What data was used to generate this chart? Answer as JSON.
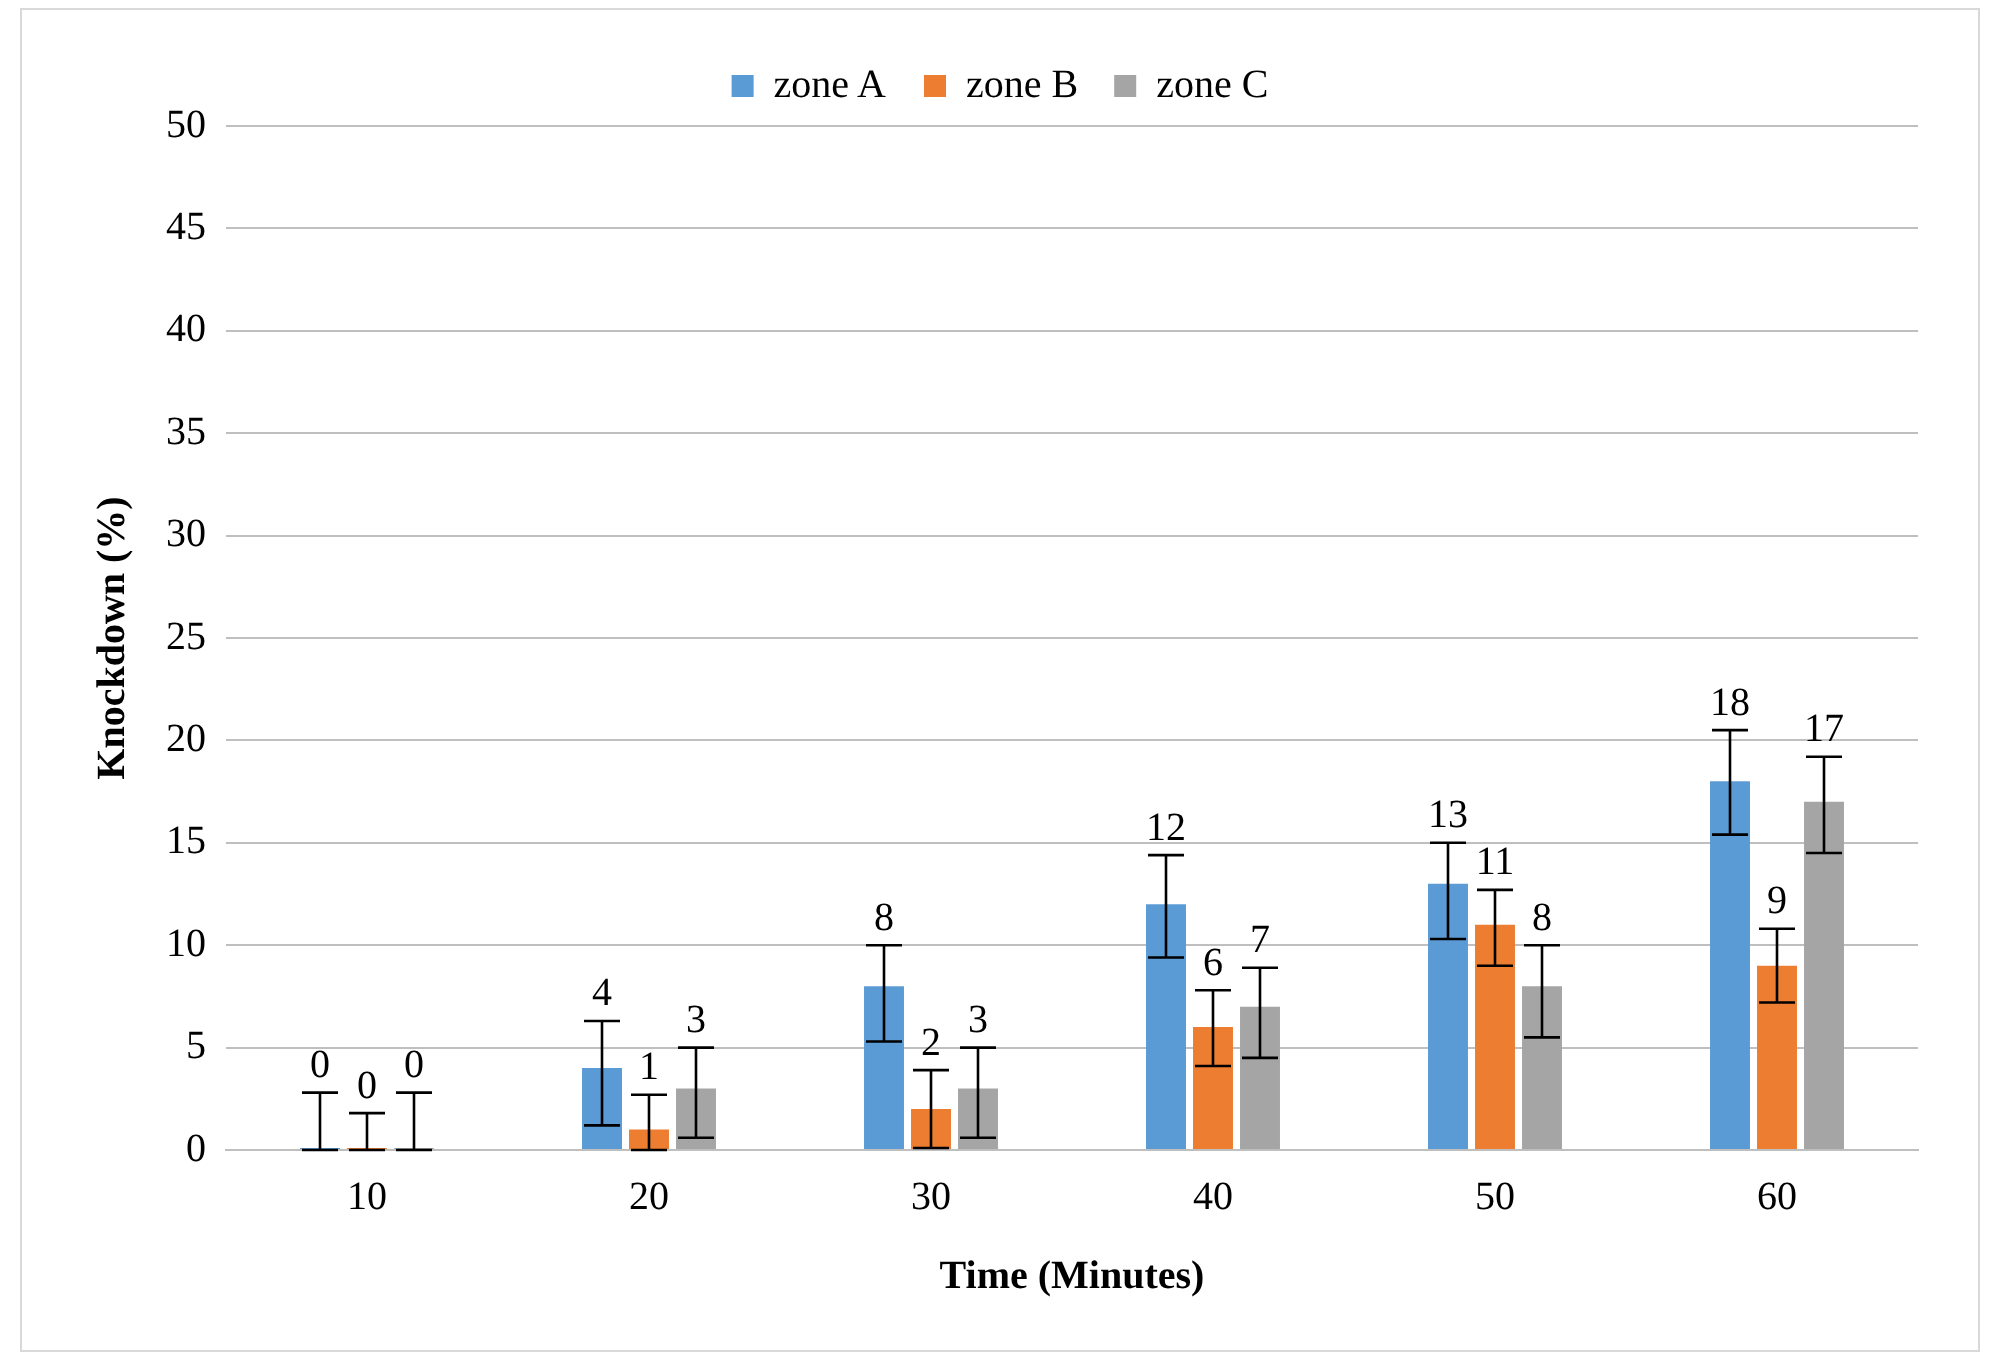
{
  "chart_data": {
    "type": "bar",
    "xlabel": "Time (Minutes)",
    "ylabel": "Knockdown (%)",
    "categories": [
      "10",
      "20",
      "30",
      "40",
      "50",
      "60"
    ],
    "series": [
      {
        "name": "zone A",
        "color": "#5b9bd5",
        "values": [
          0,
          4,
          8,
          12,
          13,
          18
        ],
        "errors": [
          [
            0,
            2.8
          ],
          [
            1.2,
            6.3
          ],
          [
            5.3,
            10.0
          ],
          [
            9.4,
            14.4
          ],
          [
            10.3,
            15.0
          ],
          [
            15.4,
            20.5
          ]
        ]
      },
      {
        "name": "zone B",
        "color": "#ed7d31",
        "values": [
          0,
          1,
          2,
          6,
          11,
          9
        ],
        "errors": [
          [
            0,
            1.8
          ],
          [
            0,
            2.7
          ],
          [
            0.1,
            3.9
          ],
          [
            4.1,
            7.8
          ],
          [
            9.0,
            12.7
          ],
          [
            7.2,
            10.8
          ]
        ]
      },
      {
        "name": "zone C",
        "color": "#a5a5a5",
        "values": [
          0,
          3,
          3,
          7,
          8,
          17
        ],
        "errors": [
          [
            0,
            2.8
          ],
          [
            0.6,
            5.0
          ],
          [
            0.6,
            5.0
          ],
          [
            4.5,
            8.9
          ],
          [
            5.5,
            10.0
          ],
          [
            14.5,
            19.2
          ]
        ]
      }
    ],
    "ylim": [
      0,
      50
    ],
    "yticks": [
      0,
      5,
      10,
      15,
      20,
      25,
      30,
      35,
      40,
      45,
      50
    ],
    "grid": "y",
    "legend": "top",
    "data_labels": true
  }
}
